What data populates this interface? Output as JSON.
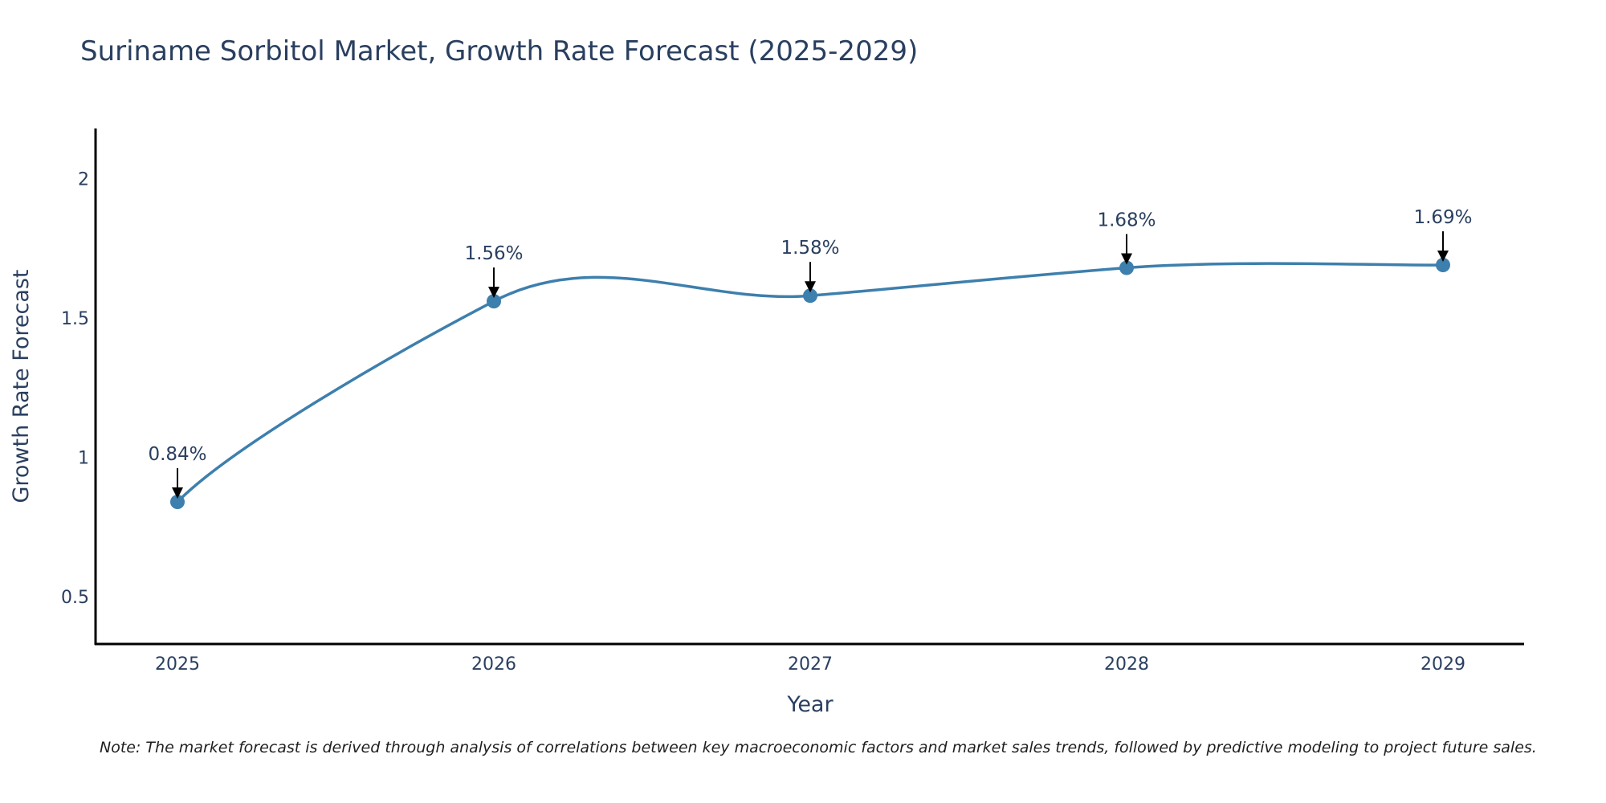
{
  "chart_data": {
    "type": "line",
    "title": "Suriname Sorbitol Market, Growth Rate Forecast (2025-2029)",
    "xlabel": "Year",
    "ylabel": "Growth Rate Forecast",
    "categories": [
      "2025",
      "2026",
      "2027",
      "2028",
      "2029"
    ],
    "series": [
      {
        "name": "Growth Rate Forecast",
        "values": [
          0.84,
          1.56,
          1.58,
          1.68,
          1.69
        ],
        "labels": [
          "0.84%",
          "1.56%",
          "1.58%",
          "1.68%",
          "1.69%"
        ],
        "color": "#3d7fad"
      }
    ],
    "yticks": [
      "0.5",
      "1",
      "1.5",
      "2"
    ],
    "ylim": [
      0.33,
      2.18
    ],
    "grid": false,
    "line_shape": "spline"
  },
  "note": "Note: The market forecast is derived through analysis of correlations between key macroeconomic factors and market sales trends, followed by predictive modeling to project future sales."
}
